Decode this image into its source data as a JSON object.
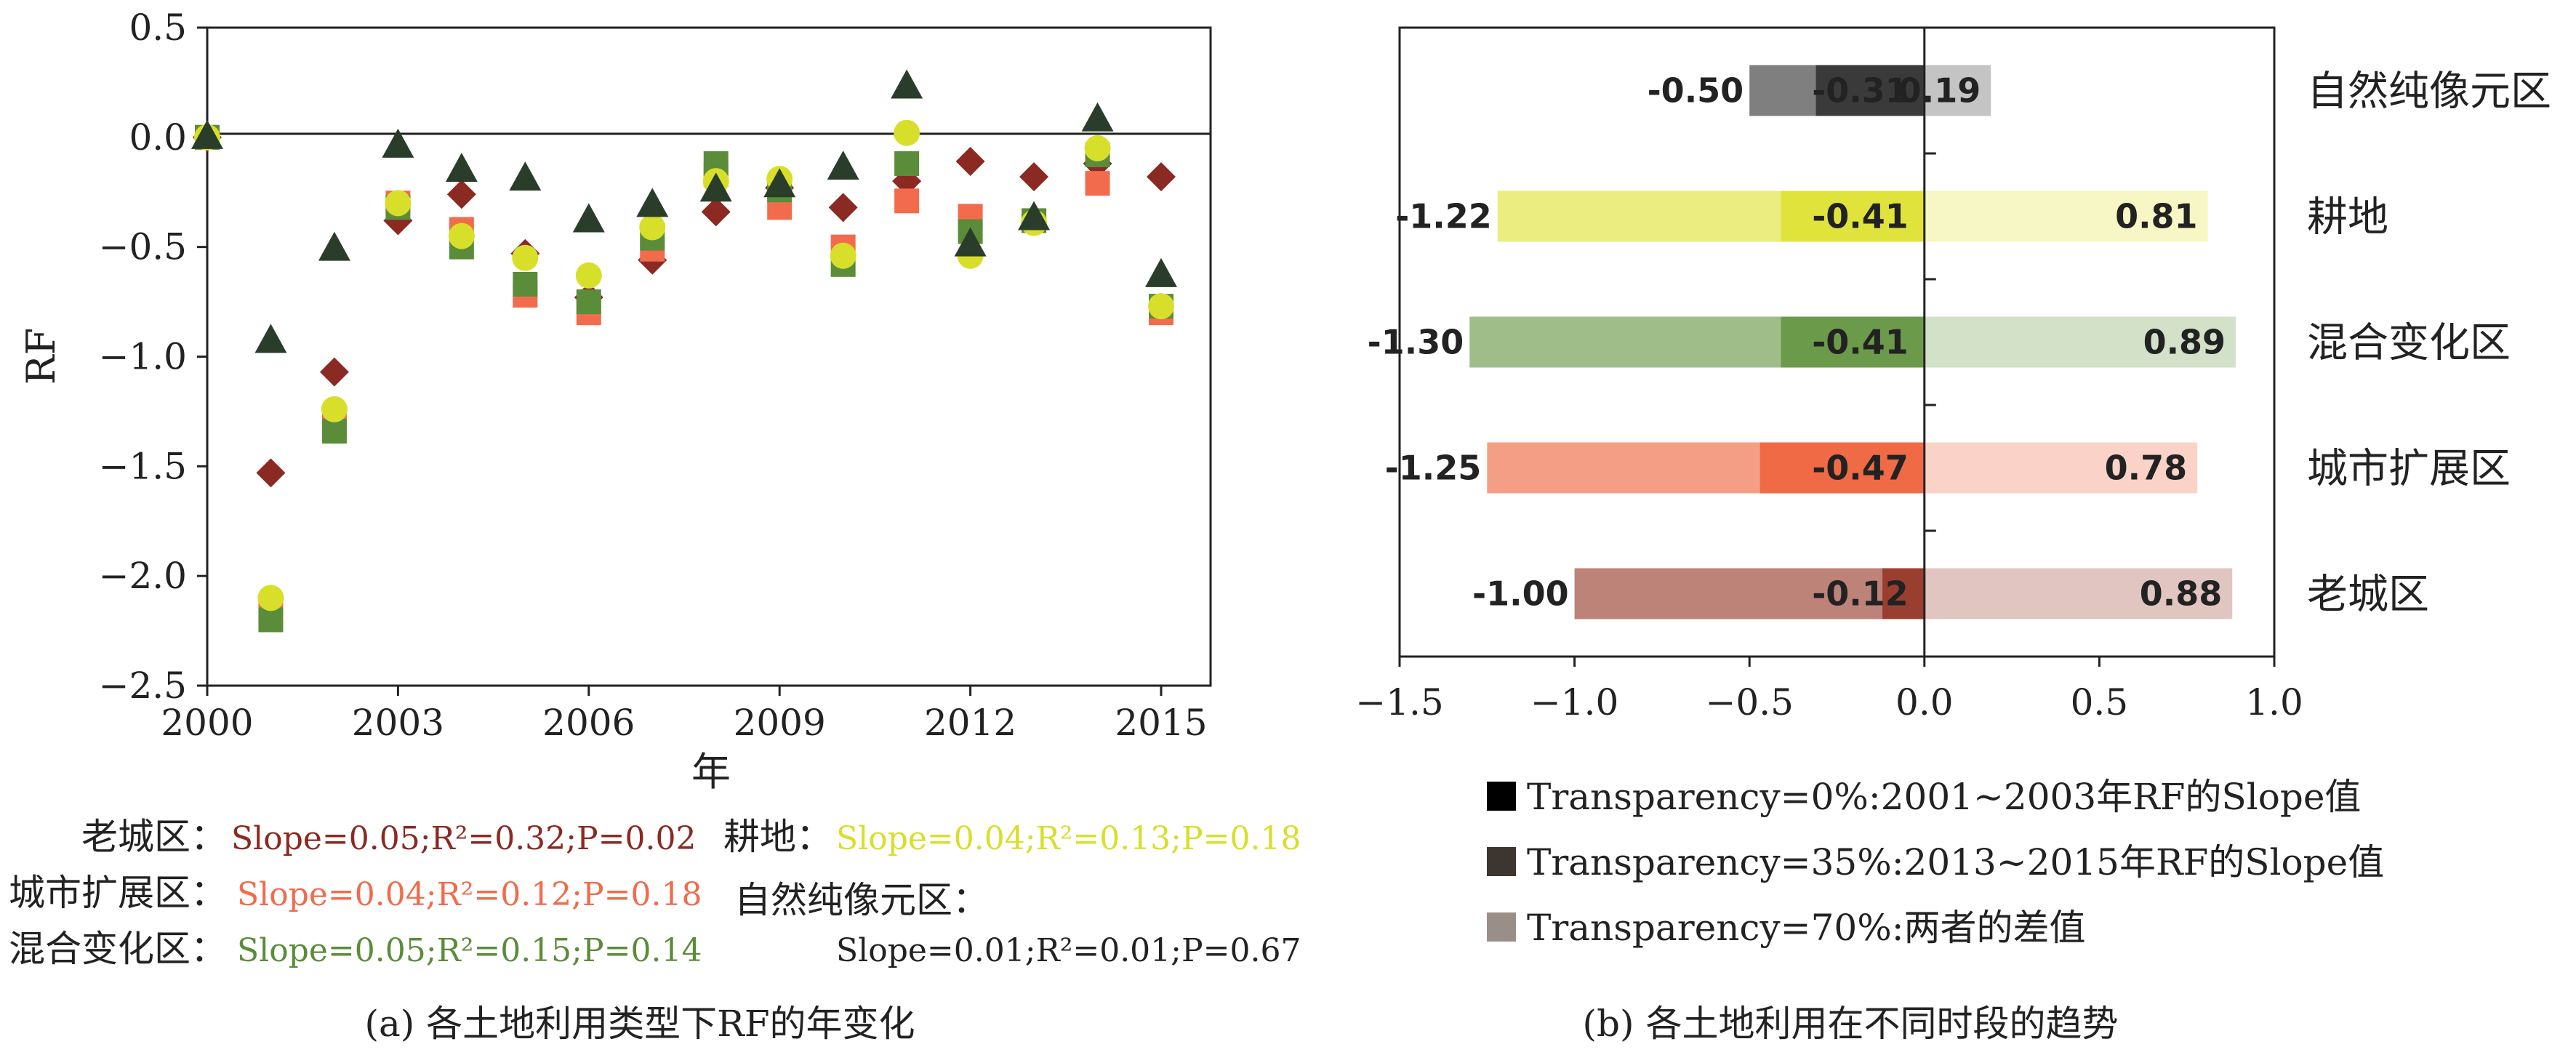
{
  "chart_data": [
    {
      "panel": "a",
      "type": "scatter",
      "caption": "(a) 各土地利用类型下RF的年变化",
      "xlabel": "年",
      "ylabel": "RF",
      "xlim": [
        2000,
        2015
      ],
      "ylim": [
        -2.5,
        0.5
      ],
      "xticks": [
        2000,
        2003,
        2006,
        2009,
        2012,
        2015
      ],
      "yticks": [
        -2.5,
        -2.0,
        -1.5,
        -1.0,
        -0.5,
        0.0,
        0.5
      ],
      "ytick_labels": [
        "−2.5",
        "−2.0",
        "−1.5",
        "−1.0",
        "−0.5",
        "0.0",
        "0.5"
      ],
      "series": [
        {
          "name": "老城区",
          "marker": "diamond",
          "color": "#8b2a22",
          "stats": "Slope=0.05;R²=0.32;P=0.02",
          "x": [
            2000,
            2001,
            2002,
            2003,
            2004,
            2005,
            2006,
            2007,
            2008,
            2009,
            2010,
            2011,
            2012,
            2013,
            2014,
            2015
          ],
          "y": [
            0.0,
            -1.53,
            -1.07,
            -0.38,
            -0.26,
            -0.53,
            -0.73,
            -0.56,
            -0.34,
            -0.23,
            -0.32,
            -0.2,
            -0.11,
            -0.18,
            -0.12,
            -0.18
          ]
        },
        {
          "name": "城市扩展区",
          "marker": "square",
          "color": "#f26b4c",
          "stats": "Slope=0.04;R²=0.12;P=0.18",
          "x": [
            2000,
            2001,
            2002,
            2003,
            2004,
            2005,
            2006,
            2007,
            2008,
            2009,
            2010,
            2011,
            2012,
            2013,
            2014,
            2015
          ],
          "y": [
            0.0,
            -2.15,
            -1.31,
            -0.3,
            -0.42,
            -0.72,
            -0.8,
            -0.51,
            -0.17,
            -0.32,
            -0.5,
            -0.29,
            -0.36,
            -0.38,
            -0.21,
            -0.8
          ]
        },
        {
          "name": "混合变化区",
          "marker": "square",
          "color": "#5b8c3a",
          "stats": "Slope=0.05;R²=0.15;P=0.14",
          "x": [
            2000,
            2001,
            2002,
            2003,
            2004,
            2005,
            2006,
            2007,
            2008,
            2009,
            2010,
            2011,
            2012,
            2013,
            2014,
            2015
          ],
          "y": [
            0.0,
            -2.2,
            -1.34,
            -0.32,
            -0.5,
            -0.67,
            -0.75,
            -0.46,
            -0.12,
            -0.24,
            -0.58,
            -0.12,
            -0.43,
            -0.38,
            -0.08,
            -0.77
          ]
        },
        {
          "name": "耕地",
          "marker": "circle",
          "color": "#d8df2a",
          "stats": "Slope=0.04;R²=0.13;P=0.18",
          "x": [
            2000,
            2001,
            2002,
            2003,
            2004,
            2005,
            2006,
            2007,
            2008,
            2009,
            2010,
            2011,
            2012,
            2013,
            2014,
            2015
          ],
          "y": [
            0.0,
            -2.1,
            -1.24,
            -0.3,
            -0.45,
            -0.55,
            -0.63,
            -0.41,
            -0.2,
            -0.19,
            -0.54,
            0.02,
            -0.54,
            -0.39,
            -0.05,
            -0.77
          ]
        },
        {
          "name": "自然纯像元区",
          "marker": "triangle",
          "color": "#2a3d2a",
          "stats": "Slope=0.01;R²=0.01;P=0.67",
          "x": [
            2000,
            2001,
            2002,
            2003,
            2004,
            2005,
            2006,
            2007,
            2008,
            2009,
            2010,
            2011,
            2012,
            2013,
            2014,
            2015
          ],
          "y": [
            0.0,
            -0.93,
            -0.51,
            -0.04,
            -0.15,
            -0.19,
            -0.38,
            -0.31,
            -0.24,
            -0.22,
            -0.14,
            0.23,
            -0.49,
            -0.37,
            0.08,
            -0.63
          ]
        }
      ]
    },
    {
      "panel": "b",
      "type": "bar",
      "orientation": "horizontal",
      "caption": "(b) 各土地利用在不同时段的趋势",
      "xlim": [
        -1.5,
        1.0
      ],
      "xticks": [
        -1.5,
        -1.0,
        -0.5,
        0.0,
        0.5,
        1.0
      ],
      "xtick_labels": [
        "−1.5",
        "−1.0",
        "−0.5",
        "0.0",
        "0.5",
        "1.0"
      ],
      "categories": [
        "自然纯像元区",
        "耕地",
        "混合变化区",
        "城市扩展区",
        "老城区"
      ],
      "colors": [
        "#3a3a3a",
        "#e0e33c",
        "#6b9a4a",
        "#ef6a45",
        "#9a3f30"
      ],
      "series": [
        {
          "name": "Transparency=0%:2001~2003年RF的Slope值",
          "values": [
            -0.31,
            -0.41,
            -0.41,
            -0.47,
            -0.12
          ],
          "labels": [
            "-0.31",
            "-0.41",
            "-0.41",
            "-0.47",
            "-0.12"
          ],
          "opacity": 1.0
        },
        {
          "name": "Transparency=35%:2013~2015年RF的Slope值",
          "values": [
            -0.5,
            -1.22,
            -1.3,
            -1.25,
            -1.0
          ],
          "labels": [
            "-0.50",
            "-1.22",
            "-1.30",
            "-1.25",
            "-1.00"
          ],
          "opacity": 0.65
        },
        {
          "name": "Transparency=70%:两者的差值",
          "values": [
            0.19,
            0.81,
            0.89,
            0.78,
            0.88
          ],
          "labels": [
            "0.19",
            "0.81",
            "0.89",
            "0.78",
            "0.88"
          ],
          "opacity": 0.3
        }
      ],
      "legend_swatch_colors": [
        "#000000",
        "#3d3630",
        "#9a8f88"
      ]
    }
  ]
}
